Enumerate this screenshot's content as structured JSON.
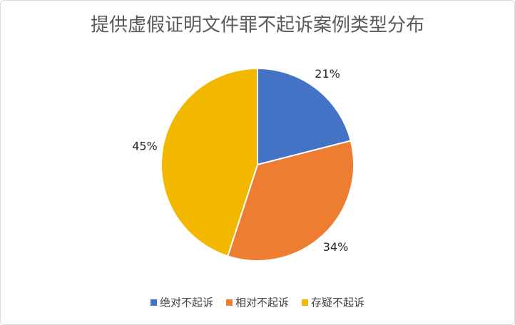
{
  "chart_data": {
    "type": "pie",
    "title": "提供虚假证明文件罪不起诉案例类型分布",
    "categories": [
      "绝对不起诉",
      "相对不起诉",
      "存疑不起诉"
    ],
    "values": [
      21,
      34,
      45
    ],
    "value_labels": [
      "21%",
      "34%",
      "45%"
    ],
    "colors": [
      "#4472c4",
      "#ed7d31",
      "#f2b800"
    ],
    "legend": "bottom"
  }
}
